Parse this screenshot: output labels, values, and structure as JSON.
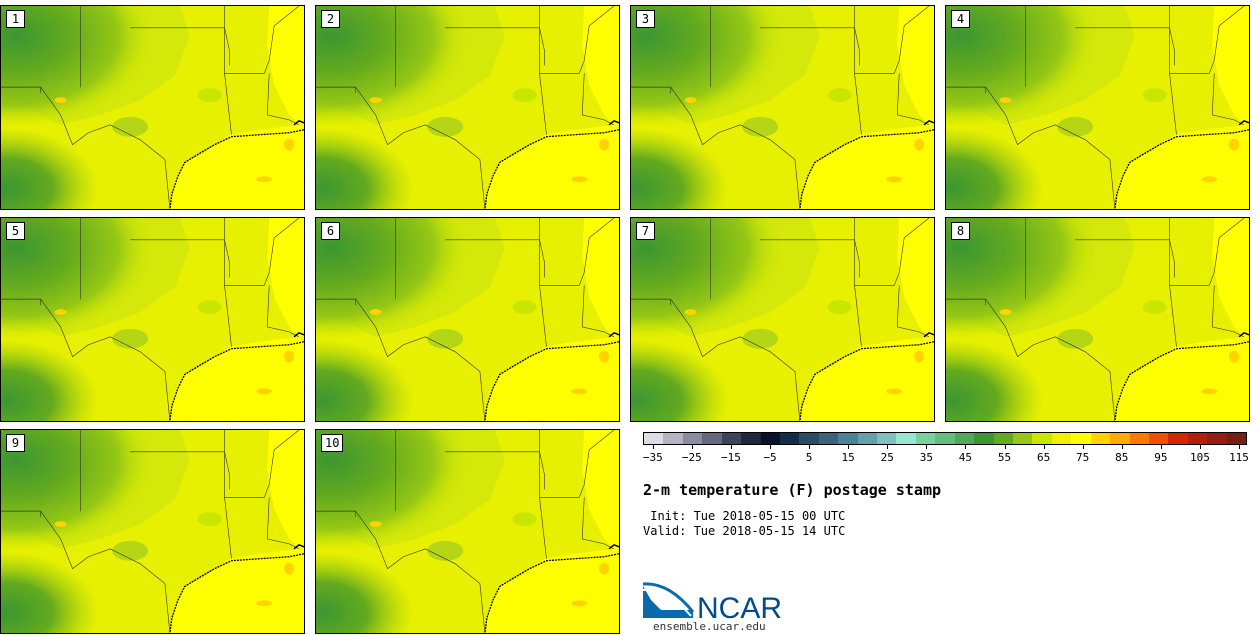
{
  "figure": {
    "title": "2-m temperature (F) postage stamp",
    "init": " Init: Tue 2018-05-15 00 UTC",
    "valid": "Valid: Tue 2018-05-15 14 UTC",
    "logo_text": "NCAR",
    "logo_url": "ensemble.ucar.edu"
  },
  "panels": [
    {
      "label": "1"
    },
    {
      "label": "2"
    },
    {
      "label": "3"
    },
    {
      "label": "4"
    },
    {
      "label": "5"
    },
    {
      "label": "6"
    },
    {
      "label": "7"
    },
    {
      "label": "8"
    },
    {
      "label": "9"
    },
    {
      "label": "10"
    }
  ],
  "colorbar": {
    "colors": [
      "#dcdce6",
      "#b4b4c3",
      "#8c8ca0",
      "#64697d",
      "#3c465a",
      "#1e283c",
      "#0a1428",
      "#142d46",
      "#2d4b64",
      "#3c6478",
      "#4b8296",
      "#64a0aa",
      "#82bebe",
      "#96e6d2",
      "#78d2a0",
      "#64be82",
      "#50aa5a",
      "#3c9632",
      "#64aa1e",
      "#96c814",
      "#c8e600",
      "#f0f000",
      "#ffff00",
      "#ffd200",
      "#ffaa00",
      "#ff7800",
      "#f05000",
      "#d22800",
      "#b41e0a",
      "#961e14",
      "#781e14"
    ],
    "tick_labels": [
      "−35",
      "−25",
      "−15",
      "−5",
      "5",
      "15",
      "25",
      "35",
      "45",
      "55",
      "65",
      "75",
      "85",
      "95",
      "105",
      "115"
    ]
  }
}
